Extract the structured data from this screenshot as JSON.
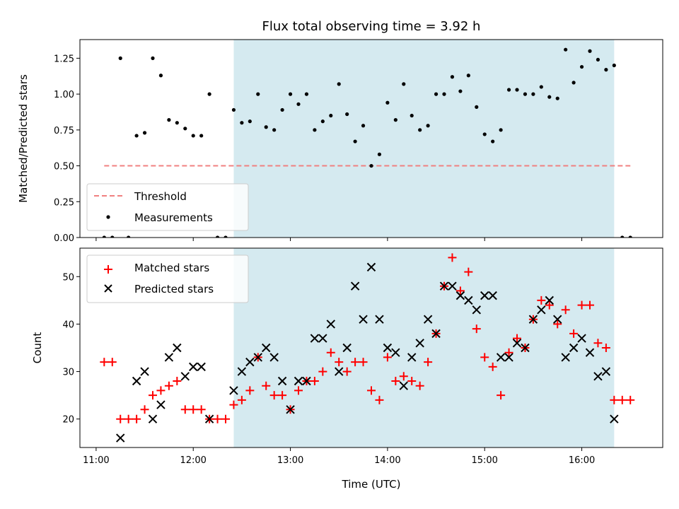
{
  "chart_data": [
    {
      "type": "scatter",
      "title": "Flux total observing time = 3.92 h",
      "xlabel": "",
      "ylabel": "Matched/Predicted stars",
      "x_unit": "time (UTC)",
      "xlim": [
        "10:50",
        "16:50"
      ],
      "ylim": [
        0,
        1.38
      ],
      "x_ticks": [
        "11:00",
        "12:00",
        "13:00",
        "14:00",
        "15:00",
        "16:00"
      ],
      "y_ticks": [
        "0.00",
        "0.25",
        "0.50",
        "0.75",
        "1.00",
        "1.25"
      ],
      "shaded_interval": {
        "start": "12:25",
        "end": "16:20",
        "color": "#d5eaf0"
      },
      "legend": {
        "position": "bottom-left",
        "entries": [
          "Threshold",
          "Measurements"
        ]
      },
      "series": [
        {
          "name": "Threshold",
          "style": "dashed-line",
          "color": "#f08080",
          "x": [
            "11:05",
            "16:30"
          ],
          "y": [
            0.5,
            0.5
          ]
        },
        {
          "name": "Measurements",
          "style": "dot",
          "color": "#000000",
          "x": [
            "11:05",
            "11:10",
            "11:15",
            "11:20",
            "11:25",
            "11:30",
            "11:35",
            "11:40",
            "11:45",
            "11:50",
            "11:55",
            "12:00",
            "12:05",
            "12:10",
            "12:15",
            "12:20",
            "12:25",
            "12:30",
            "12:35",
            "12:40",
            "12:45",
            "12:50",
            "12:55",
            "13:00",
            "13:05",
            "13:10",
            "13:15",
            "13:20",
            "13:25",
            "13:30",
            "13:35",
            "13:40",
            "13:45",
            "13:50",
            "13:55",
            "14:00",
            "14:05",
            "14:10",
            "14:15",
            "14:20",
            "14:25",
            "14:30",
            "14:35",
            "14:40",
            "14:45",
            "14:50",
            "14:55",
            "15:00",
            "15:05",
            "15:10",
            "15:15",
            "15:20",
            "15:25",
            "15:30",
            "15:35",
            "15:40",
            "15:45",
            "15:50",
            "15:55",
            "16:00",
            "16:05",
            "16:10",
            "16:15",
            "16:20",
            "16:25",
            "16:30"
          ],
          "y": [
            0,
            0,
            1.25,
            0,
            0.71,
            0.73,
            1.25,
            1.13,
            0.82,
            0.8,
            0.76,
            0.71,
            0.71,
            1.0,
            0,
            0,
            0.89,
            0.8,
            0.81,
            1.0,
            0.77,
            0.75,
            0.89,
            1.0,
            0.93,
            1.0,
            0.75,
            0.81,
            0.85,
            1.07,
            0.86,
            0.67,
            0.78,
            0.5,
            0.58,
            0.94,
            0.82,
            1.07,
            0.85,
            0.75,
            0.78,
            1.0,
            1.0,
            1.12,
            1.02,
            1.13,
            0.91,
            0.72,
            0.67,
            0.75,
            1.03,
            1.03,
            1.0,
            1.0,
            1.05,
            0.98,
            0.97,
            1.31,
            1.08,
            1.19,
            1.3,
            1.24,
            1.17,
            1.2,
            0,
            0
          ]
        }
      ]
    },
    {
      "type": "scatter",
      "title": "",
      "xlabel": "Time (UTC)",
      "ylabel": "Count",
      "xlim": [
        "10:50",
        "16:50"
      ],
      "ylim": [
        14,
        56
      ],
      "x_ticks": [
        "11:00",
        "12:00",
        "13:00",
        "14:00",
        "15:00",
        "16:00"
      ],
      "y_ticks": [
        "20",
        "30",
        "40",
        "50"
      ],
      "shaded_interval": {
        "start": "12:25",
        "end": "16:20",
        "color": "#d5eaf0"
      },
      "legend": {
        "position": "top-left",
        "entries": [
          "Matched stars",
          "Predicted stars"
        ]
      },
      "series": [
        {
          "name": "Matched stars",
          "marker": "plus",
          "color": "#ff0000",
          "x": [
            "11:05",
            "11:10",
            "11:15",
            "11:20",
            "11:25",
            "11:30",
            "11:35",
            "11:40",
            "11:45",
            "11:50",
            "11:55",
            "12:00",
            "12:05",
            "12:10",
            "12:15",
            "12:20",
            "12:25",
            "12:30",
            "12:35",
            "12:40",
            "12:45",
            "12:50",
            "12:55",
            "13:00",
            "13:05",
            "13:10",
            "13:15",
            "13:20",
            "13:25",
            "13:30",
            "13:35",
            "13:40",
            "13:45",
            "13:50",
            "13:55",
            "14:00",
            "14:05",
            "14:10",
            "14:15",
            "14:20",
            "14:25",
            "14:30",
            "14:35",
            "14:40",
            "14:45",
            "14:50",
            "14:55",
            "15:00",
            "15:05",
            "15:10",
            "15:15",
            "15:20",
            "15:25",
            "15:30",
            "15:35",
            "15:40",
            "15:45",
            "15:50",
            "15:55",
            "16:00",
            "16:05",
            "16:10",
            "16:15",
            "16:20",
            "16:25",
            "16:30"
          ],
          "y": [
            32,
            32,
            20,
            20,
            20,
            22,
            25,
            26,
            27,
            28,
            22,
            22,
            22,
            20,
            20,
            20,
            23,
            24,
            26,
            33,
            27,
            25,
            25,
            22,
            26,
            28,
            28,
            30,
            34,
            32,
            30,
            32,
            32,
            26,
            24,
            33,
            28,
            29,
            28,
            27,
            32,
            38,
            48,
            54,
            47,
            51,
            39,
            33,
            31,
            25,
            34,
            37,
            35,
            41,
            45,
            44,
            40,
            43,
            38,
            44,
            44,
            36,
            35,
            24,
            24,
            24
          ]
        },
        {
          "name": "Predicted stars",
          "marker": "x",
          "color": "#000000",
          "x": [
            "11:15",
            "11:25",
            "11:30",
            "11:35",
            "11:40",
            "11:45",
            "11:50",
            "11:55",
            "12:00",
            "12:05",
            "12:10",
            "12:25",
            "12:30",
            "12:35",
            "12:40",
            "12:45",
            "12:50",
            "12:55",
            "13:00",
            "13:05",
            "13:10",
            "13:15",
            "13:20",
            "13:25",
            "13:30",
            "13:35",
            "13:40",
            "13:45",
            "13:50",
            "13:55",
            "14:00",
            "14:05",
            "14:10",
            "14:15",
            "14:20",
            "14:25",
            "14:30",
            "14:35",
            "14:40",
            "14:45",
            "14:50",
            "14:55",
            "15:00",
            "15:05",
            "15:10",
            "15:15",
            "15:20",
            "15:25",
            "15:30",
            "15:35",
            "15:40",
            "15:45",
            "15:50",
            "15:55",
            "16:00",
            "16:05",
            "16:10",
            "16:15",
            "16:20"
          ],
          "y": [
            16,
            28,
            30,
            20,
            23,
            33,
            35,
            29,
            31,
            31,
            20,
            26,
            30,
            32,
            33,
            35,
            33,
            28,
            22,
            28,
            28,
            37,
            37,
            40,
            30,
            35,
            48,
            41,
            52,
            41,
            35,
            34,
            27,
            33,
            36,
            41,
            38,
            48,
            48,
            46,
            45,
            43,
            46,
            46,
            33,
            33,
            36,
            35,
            41,
            43,
            45,
            41,
            33,
            35,
            37,
            34,
            29,
            30,
            20
          ]
        }
      ]
    }
  ]
}
